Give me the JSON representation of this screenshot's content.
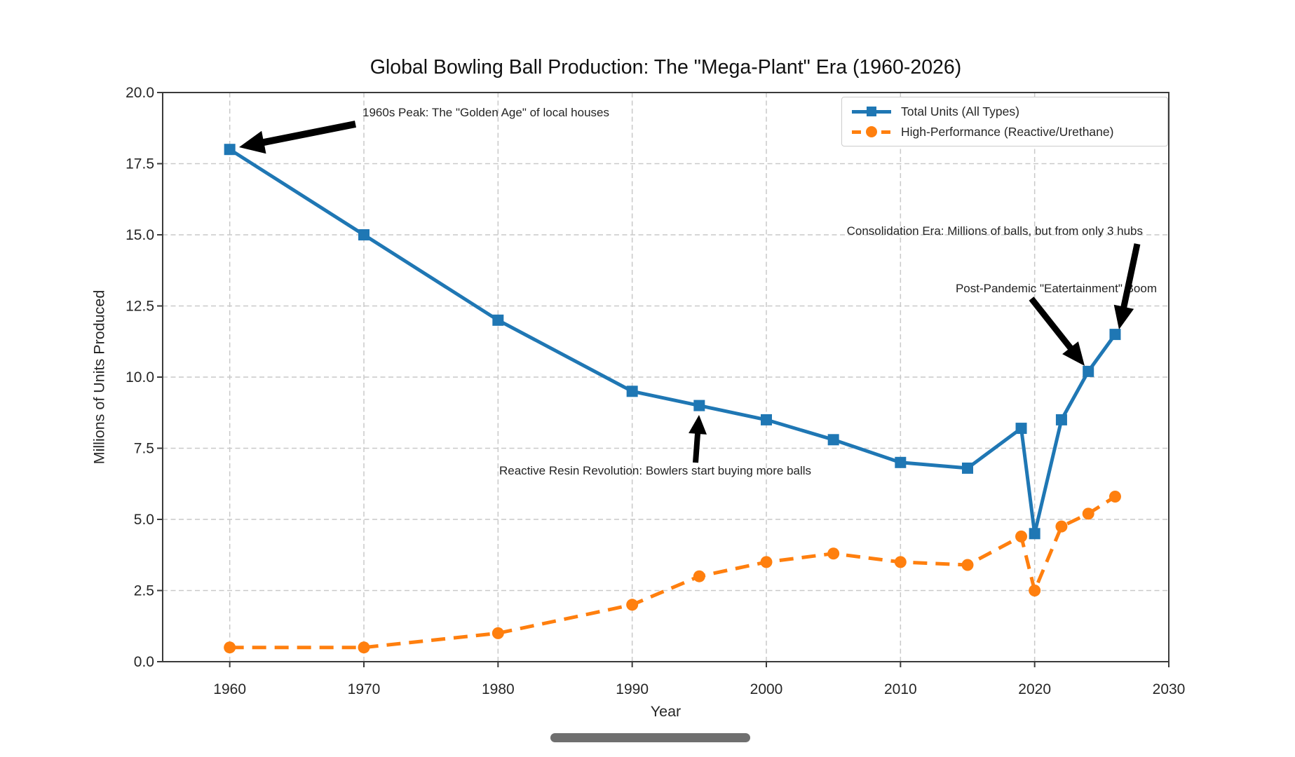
{
  "chart_data": {
    "type": "line",
    "title": "Global Bowling Ball Production: The \"Mega-Plant\" Era (1960-2026)",
    "xlabel": "Year",
    "ylabel": "Millions of Units Produced",
    "xlim": [
      1955,
      2030
    ],
    "ylim": [
      0,
      20
    ],
    "grid": true,
    "legend_position": "upper right",
    "x_ticks": [
      1960,
      1970,
      1980,
      1990,
      2000,
      2010,
      2020,
      2030
    ],
    "y_ticks": [
      0,
      2.5,
      5,
      7.5,
      10,
      12.5,
      15,
      17.5,
      20
    ],
    "y_tick_labels": [
      "0.0",
      "2.5",
      "5.0",
      "7.5",
      "10.0",
      "12.5",
      "15.0",
      "17.5",
      "20.0"
    ],
    "x": [
      1960,
      1970,
      1980,
      1990,
      1995,
      2000,
      2005,
      2010,
      2015,
      2019,
      2020,
      2022,
      2024,
      2026
    ],
    "series": [
      {
        "name": "Total Units (All Types)",
        "color": "#1f77b4",
        "line_style": "solid",
        "marker": "square",
        "values": [
          18,
          15,
          12,
          9.5,
          9,
          8.5,
          7.8,
          7,
          6.8,
          8.2,
          4.5,
          8.5,
          10.2,
          11.5
        ]
      },
      {
        "name": "High-Performance (Reactive/Urethane)",
        "color": "#ff7f0e",
        "line_style": "dashed",
        "marker": "circle",
        "values": [
          0.5,
          0.5,
          1,
          2,
          3,
          3.5,
          3.8,
          3.5,
          3.4,
          4.4,
          2.5,
          4.75,
          5.2,
          5.8
        ]
      }
    ],
    "annotations": [
      {
        "id": "peak-1960s",
        "text": "1960s Peak: The \"Golden Age\" of local houses",
        "target_year": 1960,
        "target_value": 18
      },
      {
        "id": "reactive-resin",
        "text": "Reactive Resin Revolution: Bowlers start buying more balls",
        "target_year": 1995,
        "target_value": 9
      },
      {
        "id": "consolidation",
        "text": "Consolidation Era: Millions of balls, but from only 3 hubs",
        "target_year": 2026,
        "target_value": 11.5
      },
      {
        "id": "post-pandemic",
        "text": "Post-Pandemic \"Eatertainment\" Boom",
        "target_year": 2024,
        "target_value": 10.2
      }
    ]
  },
  "colors": {
    "blue": "#1f77b4",
    "orange": "#ff7f0e",
    "grid": "#c9c9c9",
    "spine": "#3b3b3b",
    "tick_text": "#262626",
    "annotation": "#000000",
    "home_bar": "#6f6f6f"
  }
}
